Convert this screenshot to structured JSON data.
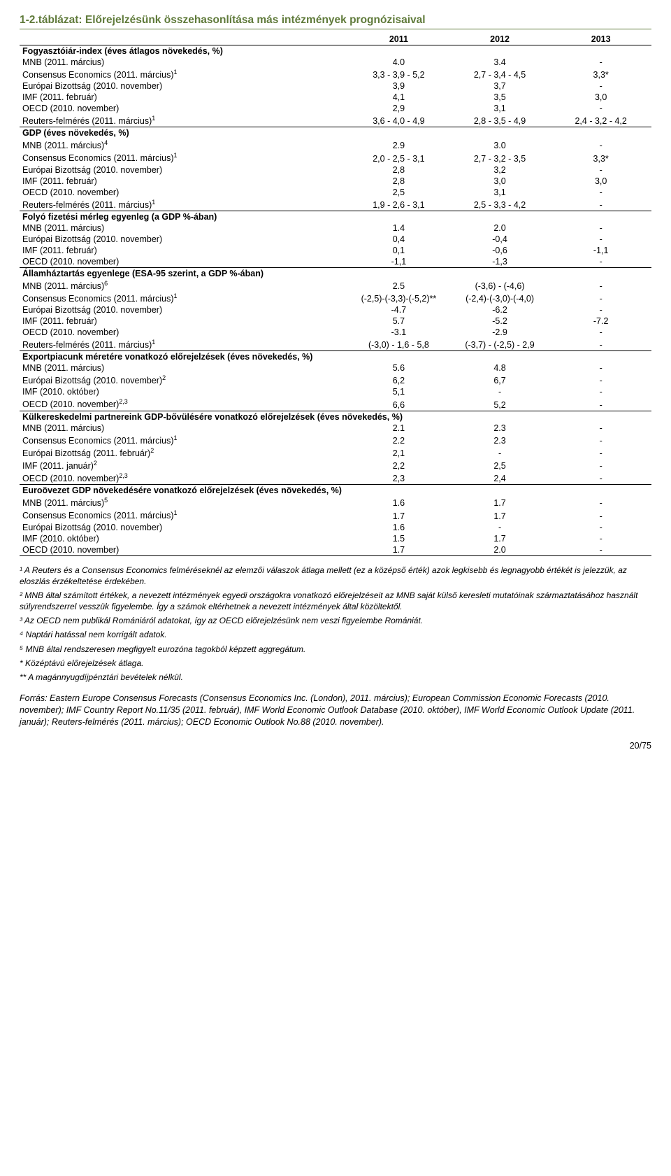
{
  "title": "1-2.táblázat: Előrejelzésünk összehasonlítása más intézmények prognózisaival",
  "years": [
    "2011",
    "2012",
    "2013"
  ],
  "sections": [
    {
      "heading": "Fogyasztóiár-index (éves átlagos növekedés, %)",
      "rows": [
        {
          "label": "MNB (2011. március)",
          "y11": "4.0",
          "y12": "3.4",
          "y13": "-"
        },
        {
          "label": "Consensus Economics (2011. március)",
          "sup": "1",
          "y11": "3,3 - 3,9 - 5,2",
          "y12": "2,7 - 3,4 - 4,5",
          "y13": "3,3*"
        },
        {
          "label": "Európai Bizottság (2010. november)",
          "y11": "3,9",
          "y12": "3,7",
          "y13": "-"
        },
        {
          "label": "IMF (2011. február)",
          "y11": "4,1",
          "y12": "3,5",
          "y13": "3,0"
        },
        {
          "label": "OECD (2010. november)",
          "y11": "2,9",
          "y12": "3,1",
          "y13": "-"
        },
        {
          "label": "Reuters-felmérés (2011. március)",
          "sup": "1",
          "y11": "3,6 - 4,0 - 4,9",
          "y12": "2,8 - 3,5 - 4,9",
          "y13": "2,4 - 3,2 - 4,2"
        }
      ]
    },
    {
      "heading": "GDP (éves növekedés, %)",
      "rows": [
        {
          "label": "MNB (2011. március)",
          "sup": "4",
          "y11": "2.9",
          "y12": "3.0",
          "y13": "-"
        },
        {
          "label": "Consensus Economics (2011. március)",
          "sup": "1",
          "y11": "2,0 - 2,5 - 3,1",
          "y12": "2,7 - 3,2 - 3,5",
          "y13": "3,3*"
        },
        {
          "label": "Európai Bizottság (2010. november)",
          "y11": "2,8",
          "y12": "3,2",
          "y13": "-"
        },
        {
          "label": "IMF (2011. február)",
          "y11": "2,8",
          "y12": "3,0",
          "y13": "3,0"
        },
        {
          "label": "OECD (2010. november)",
          "y11": "2,5",
          "y12": "3,1",
          "y13": "-"
        },
        {
          "label": "Reuters-felmérés (2011. március)",
          "sup": "1",
          "y11": "1,9 - 2,6 - 3,1",
          "y12": "2,5 - 3,3 - 4,2",
          "y13": "-"
        }
      ]
    },
    {
      "heading": "Folyó fizetési mérleg egyenleg (a GDP %-ában)",
      "rows": [
        {
          "label": "MNB (2011. március)",
          "y11": "1.4",
          "y12": "2.0",
          "y13": "-"
        },
        {
          "label": "Európai Bizottság (2010. november)",
          "y11": "0,4",
          "y12": "-0,4",
          "y13": "-"
        },
        {
          "label": "IMF (2011. február)",
          "y11": "0,1",
          "y12": "-0,6",
          "y13": "-1,1"
        },
        {
          "label": "OECD (2010. november)",
          "y11": "-1,1",
          "y12": "-1,3",
          "y13": "-"
        }
      ]
    },
    {
      "heading": "Államháztartás egyenlege (ESA-95 szerint, a GDP %-ában)",
      "rows": [
        {
          "label": "MNB (2011. március)",
          "sup": "6",
          "y11": "2.5",
          "y12": "(-3,6) - (-4,6)",
          "y13": "-"
        },
        {
          "label": "Consensus Economics (2011. március)",
          "sup": "1",
          "y11": "(-2,5)-(-3,3)-(-5,2)**",
          "y12": "(-2,4)-(-3,0)-(-4,0)",
          "y13": "-"
        },
        {
          "label": "Európai Bizottság (2010. november)",
          "y11": "-4.7",
          "y12": "-6.2",
          "y13": "-"
        },
        {
          "label": "IMF (2011. február)",
          "y11": "5.7",
          "y12": "-5.2",
          "y13": "-7.2"
        },
        {
          "label": "OECD (2010. november)",
          "y11": "-3.1",
          "y12": "-2.9",
          "y13": "-"
        },
        {
          "label": "Reuters-felmérés (2011. március)",
          "sup": "1",
          "y11": "(-3,0) - 1,6 - 5,8",
          "y12": "(-3,7) - (-2,5) - 2,9",
          "y13": "-"
        }
      ]
    },
    {
      "heading": "Exportpiacunk méretére vonatkozó előrejelzések (éves növekedés, %)",
      "rows": [
        {
          "label": "MNB (2011. március)",
          "y11": "5.6",
          "y12": "4.8",
          "y13": "-"
        },
        {
          "label": "Európai Bizottság (2010. november)",
          "sup": "2",
          "y11": "6,2",
          "y12": "6,7",
          "y13": "-"
        },
        {
          "label": "IMF (2010. október)",
          "y11": "5,1",
          "y12": "-",
          "y13": "-"
        },
        {
          "label": "OECD (2010. november)",
          "sup": "2,3",
          "y11": "6,6",
          "y12": "5,2",
          "y13": "-"
        }
      ]
    },
    {
      "heading": "Külkereskedelmi partnereink GDP-bővülésére vonatkozó előrejelzések (éves növekedés, %)",
      "rows": [
        {
          "label": "MNB (2011. március)",
          "y11": "2.1",
          "y12": "2.3",
          "y13": "-"
        },
        {
          "label": "Consensus Economics (2011. március)",
          "sup": "1",
          "y11": "2.2",
          "y12": "2.3",
          "y13": "-"
        },
        {
          "label": "Európai Bizottság (2011. február)",
          "sup": "2",
          "y11": "2,1",
          "y12": "-",
          "y13": "-"
        },
        {
          "label": "IMF (2011. január)",
          "sup": "2",
          "y11": "2,2",
          "y12": "2,5",
          "y13": "-"
        },
        {
          "label": "OECD (2010. november)",
          "sup": "2,3",
          "y11": "2,3",
          "y12": "2,4",
          "y13": "-"
        }
      ]
    },
    {
      "heading": "Euroövezet GDP növekedésére vonatkozó előrejelzések (éves növekedés, %)",
      "rows": [
        {
          "label": "MNB (2011. március)",
          "sup": "5",
          "y11": "1.6",
          "y12": "1.7",
          "y13": "-"
        },
        {
          "label": "Consensus Economics (2011. március)",
          "sup": "1",
          "y11": "1.7",
          "y12": "1.7",
          "y13": "-"
        },
        {
          "label": "Európai Bizottság (2010. november)",
          "y11": "1.6",
          "y12": "-",
          "y13": "-"
        },
        {
          "label": "IMF (2010. október)",
          "y11": "1.5",
          "y12": "1.7",
          "y13": "-"
        },
        {
          "label": "OECD (2010. november)",
          "y11": "1.7",
          "y12": "2.0",
          "y13": "-"
        }
      ]
    }
  ],
  "footnotes": [
    "¹ A Reuters és a Consensus Economics felméréseknél az elemzői válaszok átlaga mellett (ez a középső érték) azok legkisebb és legnagyobb értékét is jelezzük, az eloszlás érzékeltetése érdekében.",
    "² MNB által számított értékek, a nevezett intézmények egyedi országokra vonatkozó előrejelzéseit az MNB saját külső keresleti mutatóinak származtatásához használt súlyrendszerrel vesszük figyelembe. Így a számok eltérhetnek a nevezett intézmények által közöltektől.",
    "³ Az OECD nem publikál Romániáról adatokat, így az OECD előrejelzésünk nem veszi figyelembe Romániát.",
    "⁴ Naptári hatással nem korrigált adatok.",
    "⁵ MNB által rendszeresen megfigyelt eurozóna tagokból képzett aggregátum.",
    "* Középtávú előrejelzések átlaga.",
    "** A magánnyugdíjpénztári bevételek nélkül."
  ],
  "source": "Forrás: Eastern Europe Consensus Forecasts (Consensus Economics Inc. (London), 2011. március); European Commission Economic Forecasts (2010. november); IMF Country Report No.11/35 (2011. február), IMF World Economic Outlook Database (2010. október), IMF World Economic Outlook Update (2011. január); Reuters-felmérés (2011. március); OECD Economic Outlook No.88 (2010. november).",
  "pagenum": "20/75",
  "colors": {
    "title_color": "#5f7a3a",
    "title_border": "#5f7a3a",
    "row_border": "#000000",
    "text": "#000000",
    "background": "#ffffff"
  },
  "fonts": {
    "body_pt": 12.5,
    "title_pt": 15.5,
    "footnote_pt": 12
  }
}
